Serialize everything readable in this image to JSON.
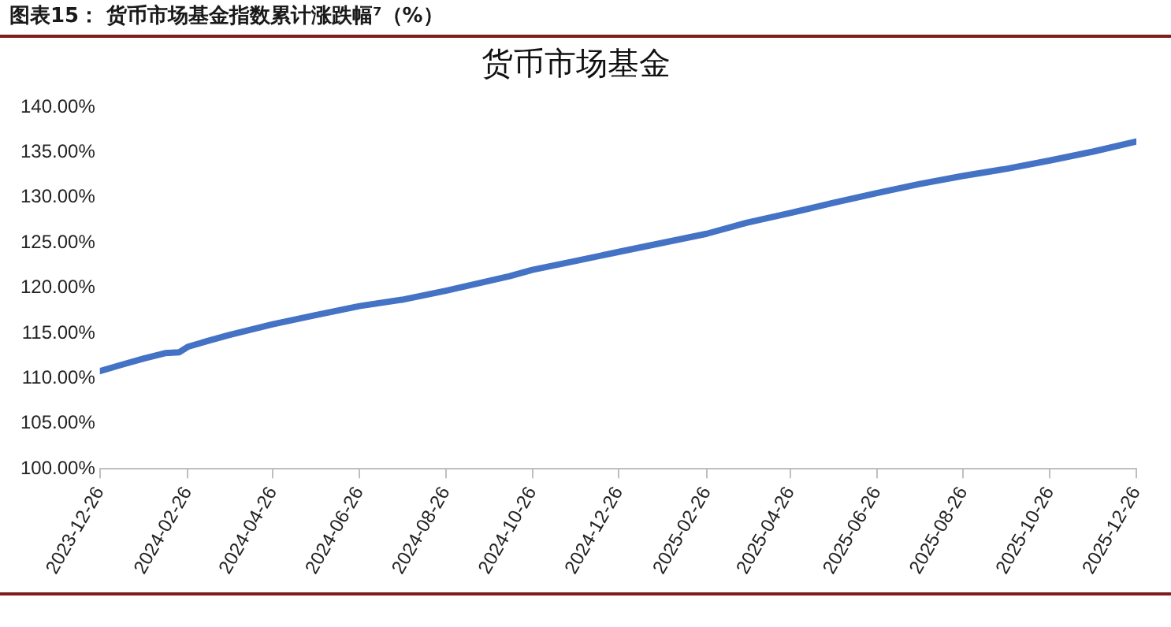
{
  "chart_data": {
    "type": "line",
    "title": "图表15：  货币市场基金指数累计涨跌幅⁷（%）",
    "subtitle": "货币市场基金",
    "x": [
      "2023-12-26",
      "2024-01-10",
      "2024-01-26",
      "2024-02-10",
      "2024-02-20",
      "2024-02-26",
      "2024-03-10",
      "2024-03-26",
      "2024-04-26",
      "2024-05-26",
      "2024-06-26",
      "2024-07-26",
      "2024-08-26",
      "2024-09-26",
      "2024-10-10",
      "2024-10-26",
      "2024-11-26",
      "2024-12-26",
      "2025-01-26",
      "2025-02-26",
      "2025-03-26",
      "2025-04-26",
      "2025-05-26",
      "2025-06-26",
      "2025-07-26",
      "2025-08-26",
      "2025-09-26",
      "2025-10-26",
      "2025-11-26",
      "2025-12-26"
    ],
    "series": [
      {
        "color": "#4472c4",
        "values": [
          110.8,
          111.5,
          112.2,
          112.8,
          112.9,
          113.5,
          114.1,
          114.8,
          116.0,
          117.0,
          118.0,
          118.7,
          119.7,
          120.8,
          121.3,
          122.0,
          123.0,
          124.0,
          125.0,
          126.0,
          127.2,
          128.3,
          129.4,
          130.5,
          131.5,
          132.4,
          133.2,
          134.1,
          135.1,
          136.2
        ]
      }
    ],
    "xlim": [
      "2023-12-26",
      "2025-12-26"
    ],
    "xticks": [
      "2023-12-26",
      "2024-02-26",
      "2024-04-26",
      "2024-06-26",
      "2024-08-26",
      "2024-10-26",
      "2024-12-26",
      "2025-02-26",
      "2025-04-26",
      "2025-06-26",
      "2025-08-26",
      "2025-10-26",
      "2025-12-26"
    ],
    "ylim": [
      100,
      140
    ],
    "yticks": [
      {
        "value": 100,
        "label": "100.00%"
      },
      {
        "value": 105,
        "label": "105.00%"
      },
      {
        "value": 110,
        "label": "110.00%"
      },
      {
        "value": 115,
        "label": "115.00%"
      },
      {
        "value": 120,
        "label": "120.00%"
      },
      {
        "value": 125,
        "label": "125.00%"
      },
      {
        "value": 130,
        "label": "130.00%"
      },
      {
        "value": 135,
        "label": "135.00%"
      },
      {
        "value": 140,
        "label": "140.00%"
      }
    ],
    "grid": false,
    "legend": false,
    "marker": "none",
    "line_style": "solid"
  }
}
